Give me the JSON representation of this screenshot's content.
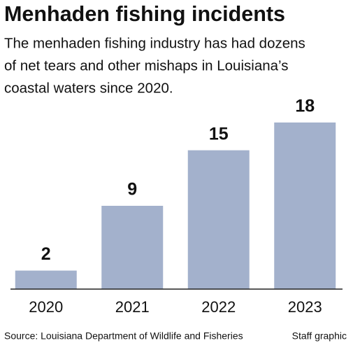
{
  "chart_data": {
    "type": "bar",
    "title": "Menhaden fishing incidents",
    "subtitle": [
      "The menhaden fishing industry has had dozens",
      "of net tears and other mishaps in Louisiana’s",
      "coastal waters since 2020."
    ],
    "categories": [
      "2020",
      "2021",
      "2022",
      "2023"
    ],
    "values": [
      2,
      9,
      15,
      18
    ],
    "color": "#a3b1cc",
    "source": "Source: Louisiana Department of Wildlife and Fisheries",
    "credit": "Staff graphic"
  }
}
